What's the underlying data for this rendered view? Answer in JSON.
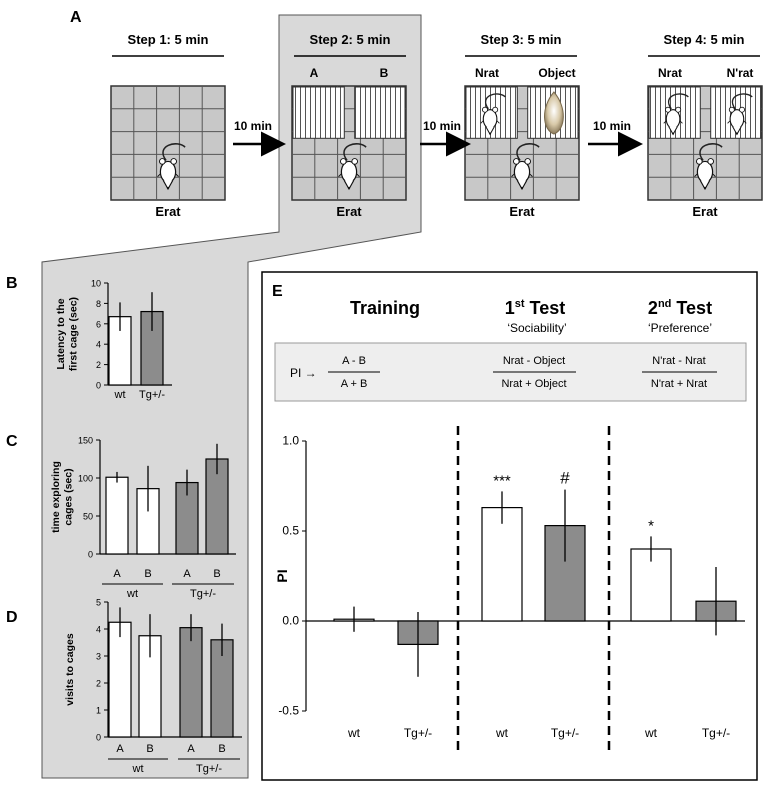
{
  "panel_letters": {
    "a": "A",
    "b": "B",
    "c": "C",
    "d": "D",
    "e": "E"
  },
  "protocol": {
    "steps": [
      {
        "title": "Step 1: 5 min",
        "left_label": "",
        "right_label": "",
        "bottom_label": "Erat"
      },
      {
        "title": "Step 2: 5 min",
        "left_label": "A",
        "right_label": "B",
        "bottom_label": "Erat"
      },
      {
        "title": "Step 3: 5 min",
        "left_label": "Nrat",
        "right_label": "Object",
        "bottom_label": "Erat"
      },
      {
        "title": "Step 4: 5 min",
        "left_label": "Nrat",
        "right_label": "N'rat",
        "bottom_label": "Erat"
      }
    ],
    "intervals": [
      "10 min",
      "10 min",
      "10 min"
    ]
  },
  "pi_table": {
    "pi_label": "PI →",
    "training": {
      "header": "Training",
      "numerator": "A - B",
      "denominator": "A + B"
    },
    "test1": {
      "header_main": "1",
      "header_sup": "st",
      "header_rest": " Test",
      "subtitle": "‘Sociability’",
      "numerator": "Nrat - Object",
      "denominator": "Nrat + Object"
    },
    "test2": {
      "header_main": "2",
      "header_sup": "nd",
      "header_rest": " Test",
      "subtitle": "‘Preference’",
      "numerator": "N'rat - Nrat",
      "denominator": "N'rat + Nrat"
    }
  },
  "colors": {
    "wt": "#ffffff",
    "tg": "#8c8c8c",
    "step2_highlight": "#d9d9d9",
    "table_bg": "#eeeeee",
    "cage_grid": "#c8c8c8"
  },
  "chart_data": [
    {
      "id": "B",
      "type": "bar",
      "ylabel": "Latency to the first cage (sec)",
      "ylim": [
        0,
        10
      ],
      "yticks": [
        0,
        2,
        4,
        6,
        8,
        10
      ],
      "categories": [
        "wt",
        "Tg+/-"
      ],
      "values": [
        6.7,
        7.2
      ],
      "errors": [
        1.4,
        1.9
      ],
      "fills": [
        "wt",
        "tg"
      ]
    },
    {
      "id": "C",
      "type": "bar",
      "ylabel": "time exploring cages (sec)",
      "ylim": [
        0,
        150
      ],
      "yticks": [
        0,
        50,
        100,
        150
      ],
      "categories": [
        "A",
        "B",
        "A",
        "B"
      ],
      "groups": [
        "wt",
        "Tg+/-"
      ],
      "values": [
        101,
        86,
        94,
        125
      ],
      "errors": [
        7,
        30,
        17,
        20
      ],
      "fills": [
        "wt",
        "wt",
        "tg",
        "tg"
      ]
    },
    {
      "id": "D",
      "type": "bar",
      "ylabel": "visits to cages",
      "ylim": [
        0,
        5
      ],
      "yticks": [
        0,
        1,
        2,
        3,
        4,
        5
      ],
      "categories": [
        "A",
        "B",
        "A",
        "B"
      ],
      "groups": [
        "wt",
        "Tg+/-"
      ],
      "values": [
        4.25,
        3.75,
        4.05,
        3.6
      ],
      "errors": [
        0.55,
        0.8,
        0.5,
        0.6
      ],
      "fills": [
        "wt",
        "wt",
        "tg",
        "tg"
      ]
    },
    {
      "id": "E",
      "type": "bar",
      "ylabel": "PI",
      "ylim": [
        -0.5,
        1.0
      ],
      "yticks": [
        -0.5,
        0.0,
        0.5,
        1.0
      ],
      "ytick_labels": [
        "-0.5",
        "0.0",
        "0.5",
        "1.0"
      ],
      "categories": [
        "wt",
        "Tg+/-",
        "wt",
        "Tg+/-",
        "wt",
        "Tg+/-"
      ],
      "values": [
        0.01,
        -0.13,
        0.63,
        0.53,
        0.4,
        0.11
      ],
      "errors": [
        0.07,
        0.18,
        0.09,
        0.2,
        0.07,
        0.19
      ],
      "fills": [
        "wt",
        "tg",
        "wt",
        "tg",
        "wt",
        "tg"
      ],
      "annotations": [
        "",
        "",
        "***",
        "#",
        "*",
        ""
      ]
    }
  ]
}
